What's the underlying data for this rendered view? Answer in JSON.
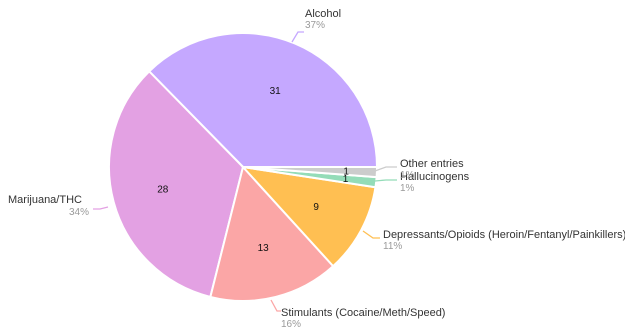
{
  "chart_data": {
    "type": "pie",
    "title": "",
    "start_angle_deg": 0,
    "direction": "counterclockwise",
    "slices": [
      {
        "name": "Alcohol",
        "value": 31,
        "percent_label": "37%",
        "value_label": "31",
        "color": "#c5a8ff"
      },
      {
        "name": "Marijuana/THC",
        "value": 28,
        "percent_label": "34%",
        "value_label": "28",
        "color": "#e3a1e3"
      },
      {
        "name": "Stimulants (Cocaine/Meth/Speed)",
        "value": 13,
        "percent_label": "16%",
        "value_label": "13",
        "color": "#fba6a6"
      },
      {
        "name": "Depressants/Opioids (Heroin/Fentanyl/Painkillers)",
        "value": 9,
        "percent_label": "11%",
        "value_label": "9",
        "color": "#ffbf52"
      },
      {
        "name": "Hallucinogens",
        "value": 1,
        "percent_label": "1%",
        "value_label": "1",
        "color": "#94dcb8"
      },
      {
        "name": "Other entries",
        "value": 1,
        "percent_label": "1%",
        "value_label": "1",
        "color": "#cccccc"
      }
    ]
  }
}
